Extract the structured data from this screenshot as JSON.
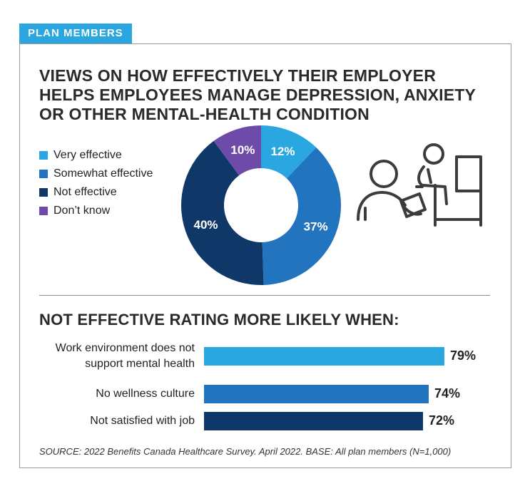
{
  "tag": "PLAN MEMBERS",
  "title": "VIEWS ON HOW EFFECTIVELY THEIR EMPLOYER HELPS EMPLOYEES MANAGE DEPRESSION, ANXIETY OR OTHER MENTAL-HEALTH CONDITION",
  "legend": [
    {
      "label": "Very effective",
      "color": "#2aa7e1"
    },
    {
      "label": "Somewhat effective",
      "color": "#2374be"
    },
    {
      "label": "Not effective",
      "color": "#0f3868"
    },
    {
      "label": "Don’t know",
      "color": "#6e4ba8"
    }
  ],
  "bars_title": "NOT EFFECTIVE RATING MORE LIKELY WHEN:",
  "source": "SOURCE: 2022 Benefits Canada Healthcare Survey. April 2022. BASE: All plan members (N=1,000)",
  "illustration_icon": "counselling-session-icon",
  "chart_data": [
    {
      "type": "pie",
      "style": "donut",
      "categories": [
        "Very effective",
        "Somewhat effective",
        "Not effective",
        "Don’t know"
      ],
      "values": [
        12,
        37,
        40,
        10
      ],
      "labels": [
        "12%",
        "37%",
        "40%",
        "10%"
      ],
      "colors": [
        "#2aa7e1",
        "#2374be",
        "#0f3868",
        "#6e4ba8"
      ],
      "legend": "left"
    },
    {
      "type": "bar",
      "orientation": "horizontal",
      "title": "NOT EFFECTIVE RATING MORE LIKELY WHEN:",
      "categories": [
        "Work environment does not support mental health",
        "No wellness culture",
        "Not satisfied with job"
      ],
      "category_lines": [
        [
          "Work environment does not",
          "support mental health"
        ],
        [
          "No wellness culture"
        ],
        [
          "Not satisfied with job"
        ]
      ],
      "values": [
        79,
        74,
        72
      ],
      "labels": [
        "79%",
        "74%",
        "72%"
      ],
      "colors": [
        "#2aa7e1",
        "#2374be",
        "#0f3868"
      ],
      "grid": false
    }
  ]
}
